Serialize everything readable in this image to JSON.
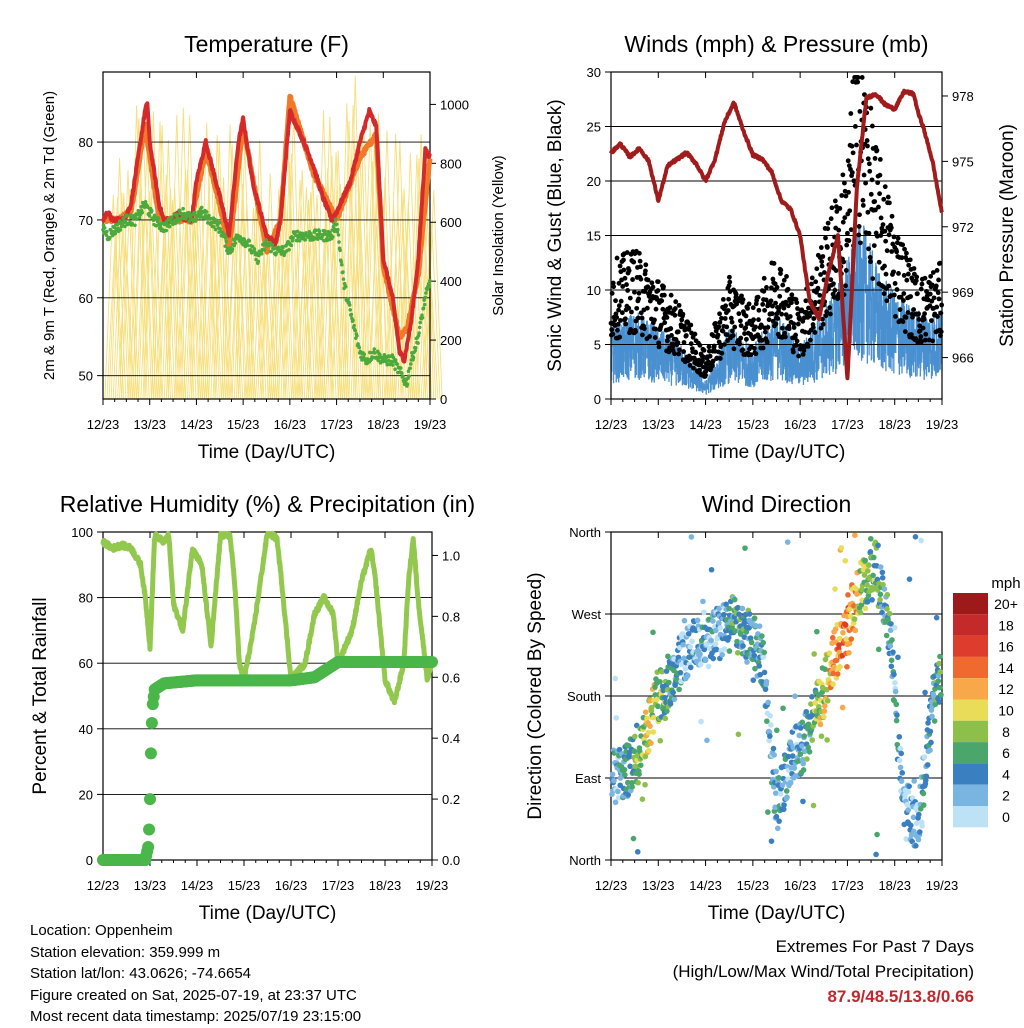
{
  "chart_data": [
    {
      "id": "temperature",
      "type": "line",
      "title": "Temperature (F)",
      "xlabel": "Time (Day/UTC)",
      "ylabel": "2m & 9m T (Red, Orange) & 2m Td (Green)",
      "ylabel_right": "Solar Insolation (Yellow)",
      "x_ticks": [
        "12/23",
        "13/23",
        "14/23",
        "15/23",
        "16/23",
        "17/23",
        "18/23",
        "19/23"
      ],
      "x_range": [
        0,
        7
      ],
      "ylim": [
        47,
        89
      ],
      "y_ticks": [
        50,
        60,
        70,
        80
      ],
      "ylim_right": [
        0,
        1110
      ],
      "y_ticks_right": [
        0,
        200,
        400,
        600,
        800,
        1000
      ],
      "series": [
        {
          "name": "2m T",
          "color": "#d42a2a",
          "x": [
            0,
            0.1,
            0.2,
            0.3,
            0.45,
            0.6,
            0.8,
            0.9,
            0.95,
            1,
            1.2,
            1.3,
            1.5,
            1.6,
            1.75,
            1.9,
            2,
            2.2,
            2.5,
            2.7,
            2.9,
            3,
            3.2,
            3.5,
            3.7,
            3.8,
            4,
            4.3,
            4.5,
            4.7,
            4.9,
            5,
            5.3,
            5.5,
            5.7,
            5.85,
            6,
            6.2,
            6.35,
            6.45,
            6.6,
            6.75,
            6.9,
            7
          ],
          "values": [
            70,
            71,
            70,
            70,
            70,
            72,
            80,
            84,
            85,
            80,
            72,
            70,
            70,
            71,
            70,
            70,
            75,
            80,
            73,
            68,
            80,
            83,
            75,
            68,
            67,
            70,
            84,
            80,
            77,
            73,
            70,
            71,
            75,
            80,
            84,
            82,
            65,
            60,
            53,
            52,
            57,
            65,
            79,
            78
          ]
        },
        {
          "name": "9m T",
          "color": "#f07a2a",
          "x": [
            0,
            0.3,
            0.6,
            0.9,
            1.2,
            1.5,
            1.9,
            2.2,
            2.5,
            2.7,
            3,
            3.5,
            3.8,
            4,
            4.5,
            5,
            5.5,
            5.85,
            6,
            6.35,
            6.5,
            6.75,
            7
          ],
          "values": [
            70,
            70,
            71,
            82,
            70,
            70,
            70,
            79,
            72,
            66,
            82,
            66,
            70,
            86,
            76,
            70,
            78,
            81,
            64,
            55,
            56,
            63,
            78
          ]
        },
        {
          "name": "2m Td",
          "color": "#4caa3c",
          "x": [
            0,
            0.1,
            0.3,
            0.5,
            0.7,
            0.9,
            1.1,
            1.3,
            1.5,
            1.7,
            1.9,
            2.1,
            2.3,
            2.5,
            2.7,
            2.9,
            3.1,
            3.3,
            3.5,
            3.7,
            3.9,
            4.1,
            4.3,
            4.5,
            4.7,
            4.9,
            5,
            5.15,
            5.3,
            5.5,
            5.65,
            5.8,
            6,
            6.2,
            6.4,
            6.5,
            6.6,
            6.75,
            6.9,
            7
          ],
          "values": [
            69,
            68,
            69,
            70,
            70,
            72,
            70,
            69,
            70,
            71,
            70,
            71,
            70,
            69,
            66,
            68,
            67,
            65,
            67,
            66,
            66,
            68,
            68,
            68,
            68,
            68,
            70,
            62,
            58,
            53,
            52,
            53,
            52,
            52,
            50,
            49,
            52,
            55,
            60,
            62
          ]
        },
        {
          "name": "Solar Insolation",
          "color": "#f7df7a",
          "axis": "right",
          "x": [
            0.4,
            0.9,
            1.4,
            1.9,
            2.4,
            2.9,
            3.4,
            3.9,
            4.4,
            4.9,
            5.4,
            5.9,
            6.4,
            6.9
          ],
          "values": [
            820,
            1080,
            1000,
            1050,
            950,
            1000,
            900,
            1050,
            900,
            1000,
            1100,
            1000,
            960,
            900
          ]
        }
      ]
    },
    {
      "id": "winds",
      "type": "scatter",
      "title": "Winds (mph) & Pressure (mb)",
      "xlabel": "Time (Day/UTC)",
      "ylabel": "Sonic Wind & Gust (Blue, Black)",
      "ylabel_right": "Station Pressure (Maroon)",
      "x_ticks": [
        "12/23",
        "13/23",
        "14/23",
        "15/23",
        "16/23",
        "17/23",
        "18/23",
        "19/23"
      ],
      "x_range": [
        0,
        7
      ],
      "ylim": [
        0,
        30
      ],
      "y_ticks": [
        0,
        5,
        10,
        15,
        20,
        25,
        30
      ],
      "ylim_right": [
        964.1,
        979.1
      ],
      "y_ticks_right": [
        966,
        969,
        972,
        975,
        978
      ],
      "series": [
        {
          "name": "Station Pressure",
          "color": "#a01c1c",
          "axis": "right",
          "x": [
            0,
            0.2,
            0.4,
            0.6,
            0.8,
            1,
            1.2,
            1.4,
            1.6,
            1.8,
            2,
            2.2,
            2.4,
            2.6,
            2.8,
            3,
            3.2,
            3.4,
            3.6,
            3.8,
            4,
            4.2,
            4.4,
            4.6,
            4.8,
            5,
            5.2,
            5.4,
            5.6,
            5.8,
            6,
            6.2,
            6.4,
            6.5,
            6.6,
            6.8,
            7
          ],
          "values": [
            975.4,
            975.8,
            975.2,
            975.6,
            975.0,
            973.2,
            974.8,
            975.1,
            975.4,
            974.9,
            974.1,
            975.1,
            976.8,
            977.7,
            976.4,
            975.3,
            975.1,
            974.5,
            973.2,
            972.8,
            971.6,
            968.6,
            967.8,
            969.9,
            971.6,
            965.0,
            973.8,
            977.9,
            978.1,
            977.6,
            977.4,
            978.2,
            978.1,
            977.2,
            976.6,
            975.0,
            972.6
          ]
        },
        {
          "name": "Wind",
          "color": "#4a90d0",
          "x": [
            0,
            0.5,
            1,
            1.5,
            2,
            2.5,
            3,
            3.5,
            4,
            4.5,
            5,
            5.3,
            5.7,
            6,
            6.5,
            7
          ],
          "values": [
            4,
            5,
            4,
            3,
            1,
            4,
            3,
            5,
            3,
            5,
            8,
            10,
            7,
            6,
            5,
            5
          ]
        },
        {
          "name": "Gust",
          "color": "#000000",
          "x": [
            0,
            0.5,
            1,
            1.5,
            2,
            2.5,
            3,
            3.5,
            4,
            4.5,
            5,
            5.2,
            5.6,
            6,
            6.5,
            7
          ],
          "values": [
            9,
            10,
            8,
            6,
            3,
            8,
            6,
            10,
            6,
            11,
            16,
            25,
            17,
            12,
            8,
            9
          ]
        }
      ]
    },
    {
      "id": "humidity",
      "type": "line",
      "title": "Relative Humidity (%) & Precipitation (in)",
      "xlabel": "Time (Day/UTC)",
      "ylabel": "Percent & Total Rainfall",
      "x_ticks": [
        "12/23",
        "13/23",
        "14/23",
        "15/23",
        "16/23",
        "17/23",
        "18/23",
        "19/23"
      ],
      "x_range": [
        0,
        7
      ],
      "ylim": [
        0,
        100
      ],
      "y_ticks": [
        0,
        20,
        40,
        60,
        80,
        100
      ],
      "ylim_right": [
        0,
        1.077
      ],
      "y_ticks_right": [
        "0.0",
        "0.2",
        "0.4",
        "0.6",
        "0.8",
        "1.0"
      ],
      "series": [
        {
          "name": "Relative Humidity",
          "color": "#92c84e",
          "x": [
            0,
            0.2,
            0.4,
            0.6,
            0.8,
            0.9,
            1,
            1.1,
            1.3,
            1.4,
            1.5,
            1.7,
            1.9,
            2.1,
            2.3,
            2.5,
            2.7,
            2.8,
            2.9,
            3,
            3.2,
            3.5,
            3.7,
            3.8,
            4,
            4.3,
            4.5,
            4.7,
            4.9,
            5,
            5.3,
            5.5,
            5.7,
            5.8,
            6,
            6.2,
            6.4,
            6.5,
            6.6,
            6.7,
            6.9,
            7
          ],
          "values": [
            97,
            95,
            96,
            95,
            90,
            80,
            65,
            99,
            97,
            99,
            78,
            70,
            95,
            90,
            65,
            99,
            99,
            85,
            60,
            55,
            70,
            100,
            98,
            85,
            55,
            60,
            75,
            80,
            75,
            60,
            70,
            85,
            95,
            85,
            55,
            48,
            60,
            85,
            98,
            80,
            55,
            60
          ]
        },
        {
          "name": "Total Rainfall",
          "color": "#4bb64a",
          "axis": "right",
          "x": [
            0,
            0.9,
            0.97,
            1,
            1.02,
            1.05,
            1.1,
            1.3,
            2,
            3,
            4,
            4.5,
            5,
            6,
            7
          ],
          "values": [
            0,
            0,
            0.05,
            0.2,
            0.35,
            0.5,
            0.56,
            0.58,
            0.59,
            0.59,
            0.59,
            0.6,
            0.65,
            0.65,
            0.65
          ]
        }
      ]
    },
    {
      "id": "direction",
      "type": "scatter",
      "title": "Wind Direction",
      "xlabel": "Time (Day/UTC)",
      "ylabel": "Direction (Colored By Speed)",
      "x_ticks": [
        "12/23",
        "13/23",
        "14/23",
        "15/23",
        "16/23",
        "17/23",
        "18/23",
        "19/23"
      ],
      "x_range": [
        0,
        7
      ],
      "ylim": [
        0,
        360
      ],
      "y_tick_values": [
        0,
        90,
        180,
        270,
        360
      ],
      "y_ticks": [
        "North",
        "East",
        "South",
        "West",
        "North"
      ],
      "series": [
        {
          "name": "Direction",
          "x": [
            0,
            0.3,
            0.5,
            0.8,
            1.0,
            1.3,
            1.6,
            2.0,
            2.3,
            2.6,
            3.0,
            3.2,
            3.5,
            3.8,
            4.1,
            4.4,
            4.7,
            5.0,
            5.3,
            5.6,
            5.9,
            6.2,
            6.5,
            6.8,
            7.0
          ],
          "values": [
            90,
            95,
            110,
            150,
            180,
            200,
            230,
            240,
            250,
            260,
            240,
            220,
            60,
            110,
            130,
            170,
            220,
            260,
            300,
            320,
            250,
            60,
            40,
            170,
            210
          ],
          "speed": [
            2,
            4,
            6,
            10,
            8,
            4,
            2,
            3,
            2,
            5,
            4,
            3,
            4,
            2,
            4,
            8,
            12,
            14,
            8,
            6,
            4,
            2,
            2,
            4,
            6
          ]
        }
      ],
      "legend": {
        "title": "mph",
        "labels": [
          "20+",
          "18",
          "16",
          "14",
          "12",
          "10",
          "8",
          "6",
          "4",
          "2",
          "0"
        ],
        "colors": [
          "#9e1a1a",
          "#c42a2a",
          "#de3c2c",
          "#f06a30",
          "#f8a848",
          "#e8dc58",
          "#8cc04a",
          "#4aa66a",
          "#3a80c0",
          "#7ab4e0",
          "#bde2f6"
        ]
      }
    }
  ],
  "info": {
    "location": "Location: Oppenheim",
    "elevation": "Station elevation: 359.999 m",
    "latlon": "Station lat/lon: 43.0626; -74.6654",
    "created": "Figure created on Sat, 2025-07-19, at 23:37 UTC",
    "recent": "Most recent data timestamp: 2025/07/19 23:15:00"
  },
  "extremes": {
    "title": "Extremes For Past 7 Days",
    "subtitle": "(High/Low/Max Wind/Total Precipitation)",
    "values": "87.9/48.5/13.8/0.66"
  }
}
